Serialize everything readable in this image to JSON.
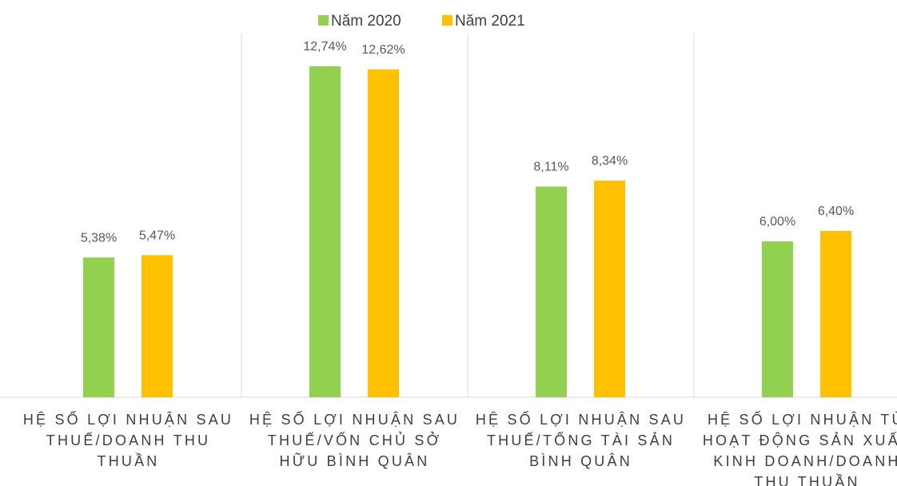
{
  "chart_data": {
    "type": "bar",
    "categories": [
      "HỆ SỐ LỢI NHUẬN SAU THUẾ/DOANH THU THUẦN",
      "HỆ SỐ LỢI NHUẬN SAU THUẾ/VỐN CHỦ SỞ HỮU BÌNH QUÂN",
      "HỆ SỐ LỢI NHUẬN SAU THUẾ/TỔNG TÀI SẢN BÌNH QUÂN",
      "HỆ SỐ LỢI NHUẬN TỪ HOẠT ĐỘNG SẢN XUẤT KINH DOANH/DOANH THU THUẦN"
    ],
    "series": [
      {
        "name": "Năm 2020",
        "color": "#92d050",
        "values": [
          5.38,
          12.74,
          8.11,
          6.0
        ],
        "value_labels": [
          "5,38%",
          "12,74%",
          "8,11%",
          "6,00%"
        ]
      },
      {
        "name": "Năm 2021",
        "color": "#ffc000",
        "values": [
          5.47,
          12.62,
          8.34,
          6.4
        ],
        "value_labels": [
          "5,47%",
          "12,62%",
          "8,34%",
          "6,40%"
        ]
      }
    ],
    "ylim": [
      0,
      14
    ]
  }
}
